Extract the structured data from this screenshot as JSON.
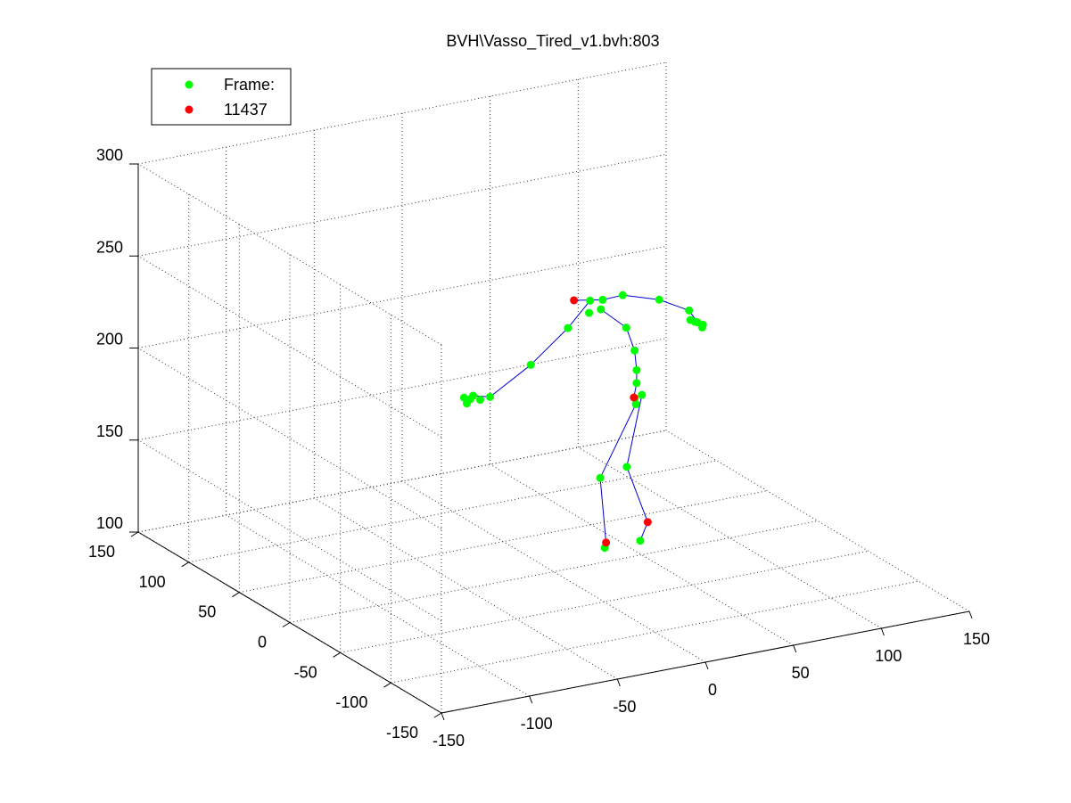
{
  "figure": {
    "title": "BVH\\Vasso_Tired_v1.bvh:803"
  },
  "legend": {
    "position": "top-left",
    "entries": [
      {
        "label": "Frame:",
        "color": "#00ff00"
      },
      {
        "label": "11437",
        "color": "#ff0000"
      }
    ]
  },
  "chart_data": {
    "type": "scatter",
    "projection": "3d",
    "title": "BVH\\Vasso_Tired_v1.bvh:803",
    "grid": true,
    "axes": {
      "x": {
        "range": [
          -150,
          150
        ],
        "ticks": [
          -150,
          -100,
          -50,
          0,
          50,
          100,
          150
        ]
      },
      "y": {
        "range": [
          -150,
          150
        ],
        "ticks": [
          -150,
          -100,
          -50,
          0,
          50,
          100,
          150
        ]
      },
      "z": {
        "range": [
          100,
          300
        ],
        "ticks": [
          100,
          150,
          200,
          250,
          300
        ]
      }
    },
    "tick_labels": {
      "x": [
        "-150",
        "-100",
        "-50",
        "0",
        "50",
        "100",
        "150"
      ],
      "y": [
        "-150",
        "-100",
        "-50",
        "0",
        "50",
        "100",
        "150"
      ],
      "z": [
        "100",
        "150",
        "200",
        "250",
        "300"
      ]
    },
    "colors": {
      "joint": "#00ff00",
      "end_joint": "#ff0000",
      "bone": "#0000cc"
    },
    "series": [
      {
        "name": "Frame:",
        "points": [
          {
            "x": 18,
            "y": -17,
            "z": 250
          },
          {
            "x": 12,
            "y": -15,
            "z": 250
          },
          {
            "x": 17,
            "y": -17,
            "z": 245
          },
          {
            "x": 12,
            "y": -14,
            "z": 243
          },
          {
            "x": 0,
            "y": -14,
            "z": 237
          },
          {
            "x": -20,
            "y": -12,
            "z": 220
          },
          {
            "x": -42,
            "y": -10,
            "z": 206
          },
          {
            "x": -47,
            "y": -9,
            "z": 205
          },
          {
            "x": -52,
            "y": -8,
            "z": 206
          },
          {
            "x": -55,
            "y": -7,
            "z": 207
          },
          {
            "x": -54,
            "y": -8,
            "z": 204
          },
          {
            "x": -51,
            "y": -9,
            "z": 208
          },
          {
            "x": 30,
            "y": -16,
            "z": 250
          },
          {
            "x": 53,
            "y": -12,
            "z": 242
          },
          {
            "x": 70,
            "y": -12,
            "z": 233
          },
          {
            "x": 69,
            "y": -15,
            "z": 229
          },
          {
            "x": 73,
            "y": -15,
            "z": 227
          },
          {
            "x": 75,
            "y": -17,
            "z": 226
          },
          {
            "x": 71,
            "y": -16,
            "z": 228
          },
          {
            "x": 74,
            "y": -18,
            "z": 225
          },
          {
            "x": 28,
            "y": -23,
            "z": 235
          },
          {
            "x": 31,
            "y": -26,
            "z": 223
          },
          {
            "x": 31,
            "y": -28,
            "z": 213
          },
          {
            "x": 31,
            "y": -28,
            "z": 206
          },
          {
            "x": 30,
            "y": -28,
            "z": 198
          },
          {
            "x": 34,
            "y": -28,
            "z": 199
          },
          {
            "x": 30,
            "y": -29,
            "z": 195
          },
          {
            "x": 8,
            "y": -32,
            "z": 160
          },
          {
            "x": 2,
            "y": -47,
            "z": 128
          },
          {
            "x": 30,
            "y": -20,
            "z": 158
          },
          {
            "x": 25,
            "y": -42,
            "z": 126
          }
        ]
      },
      {
        "name": "11437",
        "points": [
          {
            "x": 4,
            "y": -13,
            "z": 251
          },
          {
            "x": 30,
            "y": -27,
            "z": 198
          },
          {
            "x": 5,
            "y": -43,
            "z": 129
          },
          {
            "x": 35,
            "y": -32,
            "z": 131
          }
        ]
      }
    ],
    "bones": [
      {
        "from": [
          4,
          -13,
          251
        ],
        "to": [
          18,
          -17,
          250
        ]
      },
      {
        "from": [
          18,
          -17,
          250
        ],
        "to": [
          30,
          -16,
          250
        ]
      },
      {
        "from": [
          30,
          -16,
          250
        ],
        "to": [
          53,
          -12,
          242
        ]
      },
      {
        "from": [
          53,
          -12,
          242
        ],
        "to": [
          70,
          -12,
          233
        ]
      },
      {
        "from": [
          70,
          -12,
          233
        ],
        "to": [
          73,
          -15,
          227
        ]
      },
      {
        "from": [
          12,
          -15,
          250
        ],
        "to": [
          0,
          -14,
          237
        ]
      },
      {
        "from": [
          0,
          -14,
          237
        ],
        "to": [
          -20,
          -12,
          220
        ]
      },
      {
        "from": [
          -20,
          -12,
          220
        ],
        "to": [
          -42,
          -10,
          206
        ]
      },
      {
        "from": [
          -42,
          -10,
          206
        ],
        "to": [
          -51,
          -9,
          208
        ]
      },
      {
        "from": [
          17,
          -17,
          245
        ],
        "to": [
          28,
          -23,
          235
        ]
      },
      {
        "from": [
          28,
          -23,
          235
        ],
        "to": [
          31,
          -26,
          223
        ]
      },
      {
        "from": [
          31,
          -26,
          223
        ],
        "to": [
          31,
          -28,
          213
        ]
      },
      {
        "from": [
          31,
          -28,
          213
        ],
        "to": [
          31,
          -28,
          206
        ]
      },
      {
        "from": [
          31,
          -28,
          206
        ],
        "to": [
          30,
          -27,
          198
        ]
      },
      {
        "from": [
          30,
          -27,
          198
        ],
        "to": [
          34,
          -28,
          199
        ]
      },
      {
        "from": [
          34,
          -28,
          199
        ],
        "to": [
          30,
          -20,
          158
        ]
      },
      {
        "from": [
          30,
          -20,
          158
        ],
        "to": [
          35,
          -32,
          131
        ]
      },
      {
        "from": [
          35,
          -32,
          131
        ],
        "to": [
          25,
          -42,
          126
        ]
      },
      {
        "from": [
          30,
          -27,
          198
        ],
        "to": [
          30,
          -29,
          195
        ]
      },
      {
        "from": [
          30,
          -29,
          195
        ],
        "to": [
          8,
          -32,
          160
        ]
      },
      {
        "from": [
          8,
          -32,
          160
        ],
        "to": [
          5,
          -43,
          129
        ]
      },
      {
        "from": [
          5,
          -43,
          129
        ],
        "to": [
          2,
          -47,
          128
        ]
      }
    ]
  }
}
